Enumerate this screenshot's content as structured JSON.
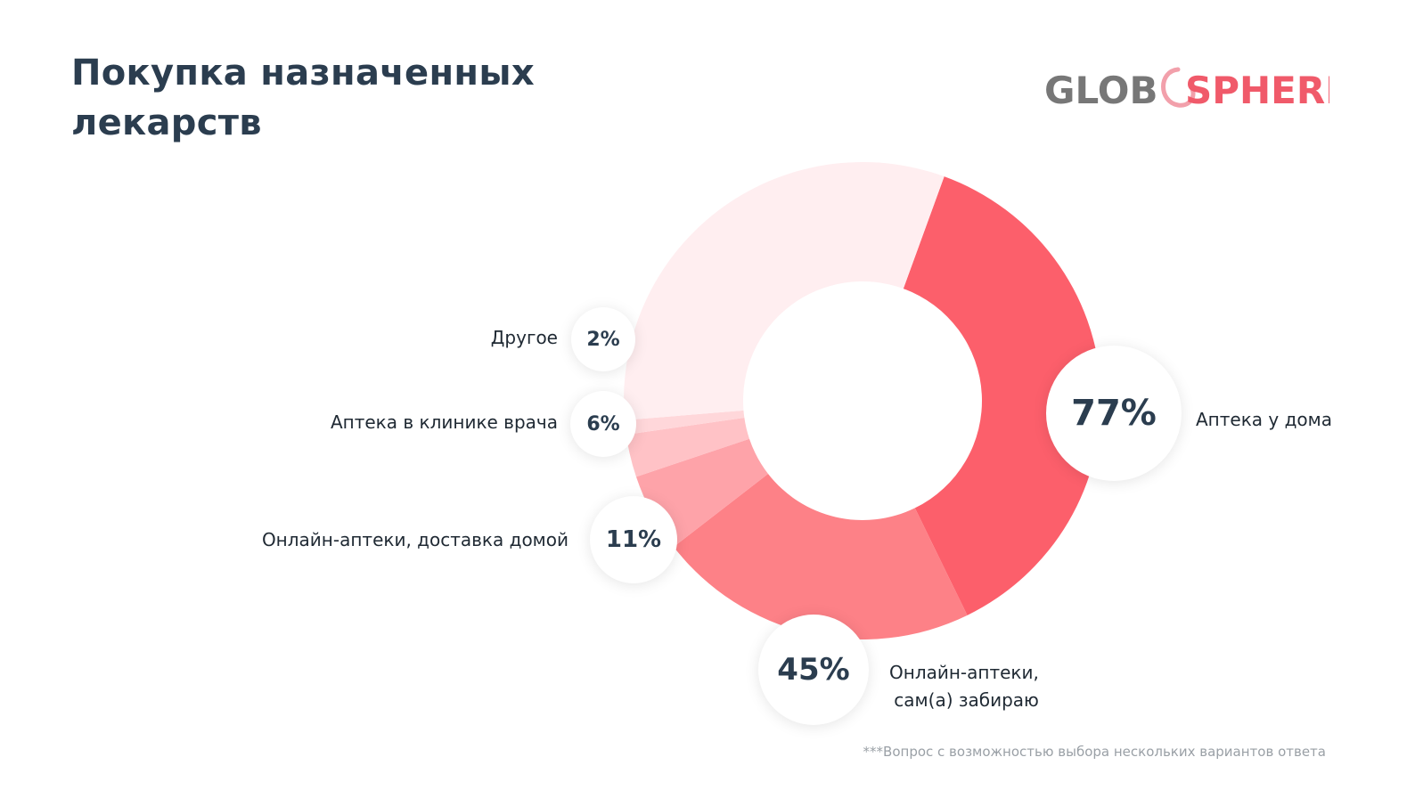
{
  "title": "Покупка назначенных лекарств",
  "logo": {
    "left_text": "GLOB",
    "right_text": "SPHERE",
    "left_color": "#777777",
    "right_color": "#f05a6a"
  },
  "chart_data": {
    "type": "donut",
    "categories": [
      "Аптека у дома",
      "Онлайн-аптеки, сам(а) забираю",
      "Онлайн-аптеки, доставка домой",
      "Аптека в клинике врача",
      "Другое"
    ],
    "values": [
      77,
      45,
      11,
      6,
      2
    ],
    "value_labels": [
      "77%",
      "45%",
      "11%",
      "6%",
      "2%"
    ],
    "label_lines": [
      [
        "Аптека у дома"
      ],
      [
        "Онлайн-аптеки,",
        "сам(а) забираю"
      ],
      [
        "Онлайн-аптеки, доставка домой"
      ],
      [
        "Аптека в клинике врача"
      ],
      [
        "Другое"
      ]
    ],
    "colors": [
      "#fc5f6b",
      "#fd8187",
      "#fea3a9",
      "#ffc2c6",
      "#ffd7da"
    ],
    "remainder_color": "#ffeef0",
    "unit": "%",
    "note": "multiple answers allowed; values sum over 100%"
  },
  "footnote": "***Вопрос с возможностью выбора нескольких вариантов ответа"
}
